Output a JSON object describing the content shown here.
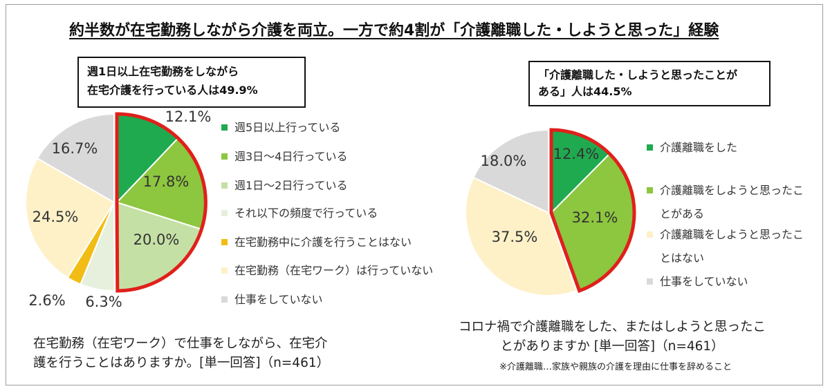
{
  "title": "約半数が在宅勤務しながら介護を両立。一方で約4割が「介護離職した・しようと思った」経験",
  "callouts": {
    "left": [
      "週1日以上在宅勤務をしながら",
      "在宅介護を行っている人は49.9%"
    ],
    "right": [
      "「介護離職した・しようと思ったことが",
      "ある」人は44.5%"
    ]
  },
  "questions": {
    "left": [
      "在宅勤務（在宅ワーク）で仕事をしながら、在宅介",
      "護を行うことはありますか。[単一回答]（n=461）"
    ],
    "right": [
      "コロナ禍で介護離職をした、またはしようと思ったこ",
      "とがありますか [単一回答]（n=461）"
    ],
    "right_note": "※介護離職…家族や親族の介護を理由に仕事を辞めること"
  },
  "chart_data": [
    {
      "type": "pie",
      "categories": [
        "週5日以上行っている",
        "週3日～4日行っている",
        "週1日～2日行っている",
        "それ以下の頻度で行っている",
        "在宅勤務中に介護を行うことはない",
        "在宅勤務（在宅ワーク）は行っていない",
        "仕事をしていない"
      ],
      "values": [
        12.1,
        17.8,
        20.0,
        6.3,
        2.6,
        24.5,
        16.7
      ],
      "labels": [
        "12.1%",
        "17.8%",
        "20.0%",
        "6.3%",
        "2.6%",
        "24.5%",
        "16.7%"
      ],
      "legend_lines": [
        [
          "週5日以上行っている"
        ],
        [
          "週3日～4日行っている"
        ],
        [
          "週1日～2日行っている"
        ],
        [
          "それ以下の頻度で行っている"
        ],
        [
          "在宅勤務中に介護を行うことはない"
        ],
        [
          "在宅勤務（在宅ワーク）は行っていない"
        ],
        [
          "仕事をしていない"
        ]
      ],
      "colors": [
        "#1faa4f",
        "#8dc63f",
        "#c5e0a5",
        "#e6f0dc",
        "#f1bd14",
        "#fef1c8",
        "#d9d9d9"
      ],
      "highlight_color": "#e0201b",
      "highlighted": [
        0,
        1,
        2
      ],
      "legend_position": "right"
    },
    {
      "type": "pie",
      "categories": [
        "介護離職をした",
        "介護離職をしようと思ったことがある",
        "介護離職をしようと思ったことはない",
        "仕事をしていない"
      ],
      "values": [
        12.4,
        32.1,
        37.5,
        18.0
      ],
      "labels": [
        "12.4%",
        "32.1%",
        "37.5%",
        "18.0%"
      ],
      "legend_lines": [
        [
          "介護離職をした"
        ],
        [
          "介護離職をしようと思ったこ",
          "とがある"
        ],
        [
          "介護離職をしようと思ったこ",
          "とはない"
        ],
        [
          "仕事をしていない"
        ]
      ],
      "colors": [
        "#1faa4f",
        "#8dc63f",
        "#fef1c8",
        "#d9d9d9"
      ],
      "highlight_color": "#e0201b",
      "highlighted": [
        0,
        1
      ],
      "legend_position": "right"
    }
  ]
}
